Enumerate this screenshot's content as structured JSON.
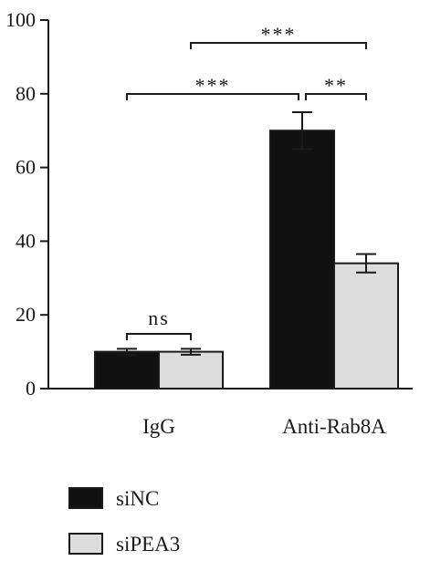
{
  "chart_data": {
    "type": "bar",
    "title": "",
    "xlabel": "",
    "ylabel": "",
    "ylim": [
      0,
      100
    ],
    "yticks": [
      0,
      20,
      40,
      60,
      80,
      100
    ],
    "categories": [
      "IgG",
      "Anti-Rab8A"
    ],
    "series": [
      {
        "name": "siNC",
        "values": [
          10,
          70
        ],
        "errors": [
          0.8,
          5
        ],
        "color": "#111111"
      },
      {
        "name": "siPEA3",
        "values": [
          10,
          34
        ],
        "errors": [
          0.8,
          2.5
        ],
        "color": "#dcdcdc"
      }
    ],
    "legend_position": "bottom-left",
    "significance": [
      {
        "label": "ns",
        "from": "IgG/siNC",
        "to": "IgG/siPEA3"
      },
      {
        "label": "***",
        "from": "IgG/siNC",
        "to": "Anti-Rab8A/siNC"
      },
      {
        "label": "**",
        "from": "Anti-Rab8A/siNC",
        "to": "Anti-Rab8A/siPEA3"
      },
      {
        "label": "***",
        "from": "IgG/siPEA3",
        "to": "Anti-Rab8A/siPEA3"
      }
    ]
  }
}
